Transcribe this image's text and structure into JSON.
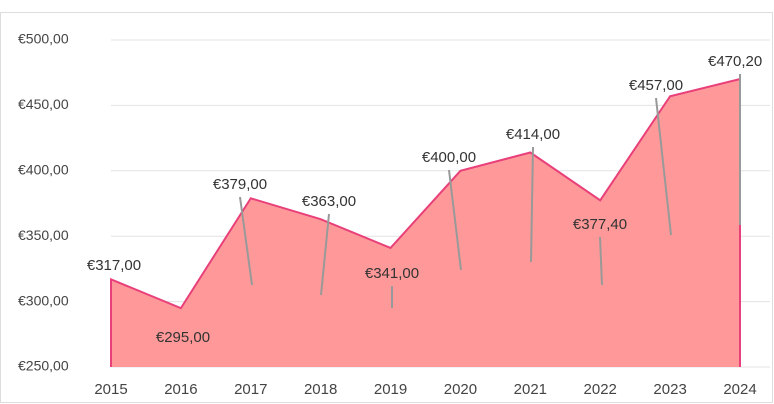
{
  "chart_data": {
    "type": "area",
    "categories": [
      "2015",
      "2016",
      "2017",
      "2018",
      "2019",
      "2020",
      "2021",
      "2022",
      "2023",
      "2024"
    ],
    "values": [
      317,
      295,
      379,
      363,
      341,
      400,
      414,
      377.4,
      457,
      470.2
    ],
    "value_labels": [
      "€317,00",
      "€295,00",
      "€379,00",
      "€363,00",
      "€341,00",
      "€400,00",
      "€414,00",
      "€377,40",
      "€457,00",
      "€470,20"
    ],
    "color": "#ff9999",
    "line_color": "#e8407a",
    "ylim": [
      250,
      500
    ],
    "yticks": [
      {
        "value": 250,
        "label": "€250,00"
      },
      {
        "value": 300,
        "label": "€300,00"
      },
      {
        "value": 350,
        "label": "€350,00"
      },
      {
        "value": 400,
        "label": "€400,00"
      },
      {
        "value": 450,
        "label": "€450,00"
      },
      {
        "value": 500,
        "label": "€500,00"
      }
    ],
    "grid": true
  }
}
